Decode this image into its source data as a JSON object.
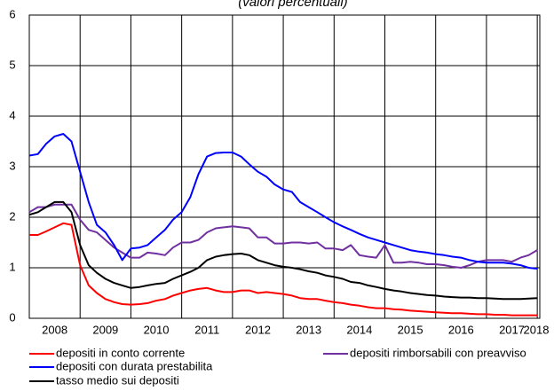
{
  "chart_data": {
    "type": "line",
    "title": "(valori percentuali)",
    "x": [
      2008,
      2008.17,
      2008.33,
      2008.5,
      2008.67,
      2008.83,
      2009,
      2009.17,
      2009.33,
      2009.5,
      2009.67,
      2009.83,
      2010,
      2010.17,
      2010.33,
      2010.5,
      2010.67,
      2010.83,
      2011,
      2011.17,
      2011.33,
      2011.5,
      2011.67,
      2011.83,
      2012,
      2012.17,
      2012.33,
      2012.5,
      2012.67,
      2012.83,
      2013,
      2013.17,
      2013.33,
      2013.5,
      2013.67,
      2013.83,
      2014,
      2014.17,
      2014.33,
      2014.5,
      2014.67,
      2014.83,
      2015,
      2015.17,
      2015.33,
      2015.5,
      2015.67,
      2015.83,
      2016,
      2016.17,
      2016.33,
      2016.5,
      2016.67,
      2016.83,
      2017,
      2017.17,
      2017.33,
      2017.5,
      2017.67,
      2017.83,
      2018
    ],
    "series": [
      {
        "name": "depositi in conto corrente",
        "color": "#ff0000",
        "values": [
          1.65,
          1.65,
          1.72,
          1.8,
          1.88,
          1.85,
          1.05,
          0.65,
          0.5,
          0.38,
          0.32,
          0.28,
          0.27,
          0.28,
          0.3,
          0.35,
          0.38,
          0.45,
          0.5,
          0.55,
          0.58,
          0.6,
          0.55,
          0.52,
          0.52,
          0.55,
          0.55,
          0.5,
          0.52,
          0.5,
          0.48,
          0.45,
          0.4,
          0.38,
          0.38,
          0.35,
          0.32,
          0.3,
          0.27,
          0.25,
          0.22,
          0.2,
          0.2,
          0.18,
          0.17,
          0.15,
          0.14,
          0.13,
          0.12,
          0.11,
          0.1,
          0.1,
          0.09,
          0.08,
          0.08,
          0.07,
          0.07,
          0.06,
          0.06,
          0.06,
          0.06
        ]
      },
      {
        "name": "depositi rimborsabili con preavviso",
        "color": "#7030a0",
        "values": [
          2.1,
          2.2,
          2.2,
          2.25,
          2.25,
          2.25,
          1.95,
          1.75,
          1.7,
          1.55,
          1.4,
          1.3,
          1.2,
          1.2,
          1.3,
          1.28,
          1.25,
          1.4,
          1.5,
          1.5,
          1.55,
          1.7,
          1.78,
          1.8,
          1.82,
          1.8,
          1.78,
          1.6,
          1.6,
          1.48,
          1.48,
          1.5,
          1.5,
          1.48,
          1.5,
          1.38,
          1.38,
          1.35,
          1.45,
          1.25,
          1.22,
          1.2,
          1.45,
          1.1,
          1.1,
          1.12,
          1.1,
          1.07,
          1.07,
          1.05,
          1.02,
          1.0,
          1.05,
          1.12,
          1.15,
          1.15,
          1.15,
          1.12,
          1.2,
          1.25,
          1.35
        ]
      },
      {
        "name": "depositi con durata prestabilita",
        "color": "#0000ff",
        "values": [
          3.22,
          3.25,
          3.45,
          3.6,
          3.65,
          3.5,
          2.9,
          2.3,
          1.85,
          1.7,
          1.45,
          1.15,
          1.38,
          1.4,
          1.45,
          1.6,
          1.75,
          1.95,
          2.1,
          2.4,
          2.85,
          3.2,
          3.27,
          3.28,
          3.28,
          3.2,
          3.05,
          2.9,
          2.8,
          2.65,
          2.55,
          2.5,
          2.3,
          2.2,
          2.1,
          2.0,
          1.9,
          1.82,
          1.75,
          1.67,
          1.6,
          1.55,
          1.5,
          1.45,
          1.4,
          1.35,
          1.32,
          1.3,
          1.27,
          1.25,
          1.22,
          1.2,
          1.15,
          1.12,
          1.1,
          1.1,
          1.1,
          1.08,
          1.05,
          1.0,
          0.98
        ]
      },
      {
        "name": "tasso medio sui depositi",
        "color": "#000000",
        "values": [
          2.05,
          2.1,
          2.2,
          2.3,
          2.3,
          2.1,
          1.45,
          1.05,
          0.9,
          0.78,
          0.7,
          0.65,
          0.6,
          0.62,
          0.65,
          0.68,
          0.7,
          0.78,
          0.85,
          0.92,
          1.0,
          1.15,
          1.22,
          1.25,
          1.27,
          1.28,
          1.25,
          1.15,
          1.1,
          1.05,
          1.02,
          1.0,
          0.97,
          0.93,
          0.9,
          0.85,
          0.82,
          0.78,
          0.72,
          0.7,
          0.65,
          0.62,
          0.58,
          0.55,
          0.53,
          0.5,
          0.48,
          0.46,
          0.45,
          0.43,
          0.42,
          0.41,
          0.41,
          0.4,
          0.4,
          0.39,
          0.38,
          0.38,
          0.38,
          0.39,
          0.4
        ]
      }
    ],
    "xlim": [
      2008,
      2018.05
    ],
    "xticks": [
      2008,
      2009,
      2010,
      2011,
      2012,
      2013,
      2014,
      2015,
      2016,
      2017,
      2018
    ],
    "ylim": [
      0,
      6
    ],
    "yticks": [
      0,
      1,
      2,
      3,
      4,
      5,
      6
    ],
    "grid": true
  }
}
